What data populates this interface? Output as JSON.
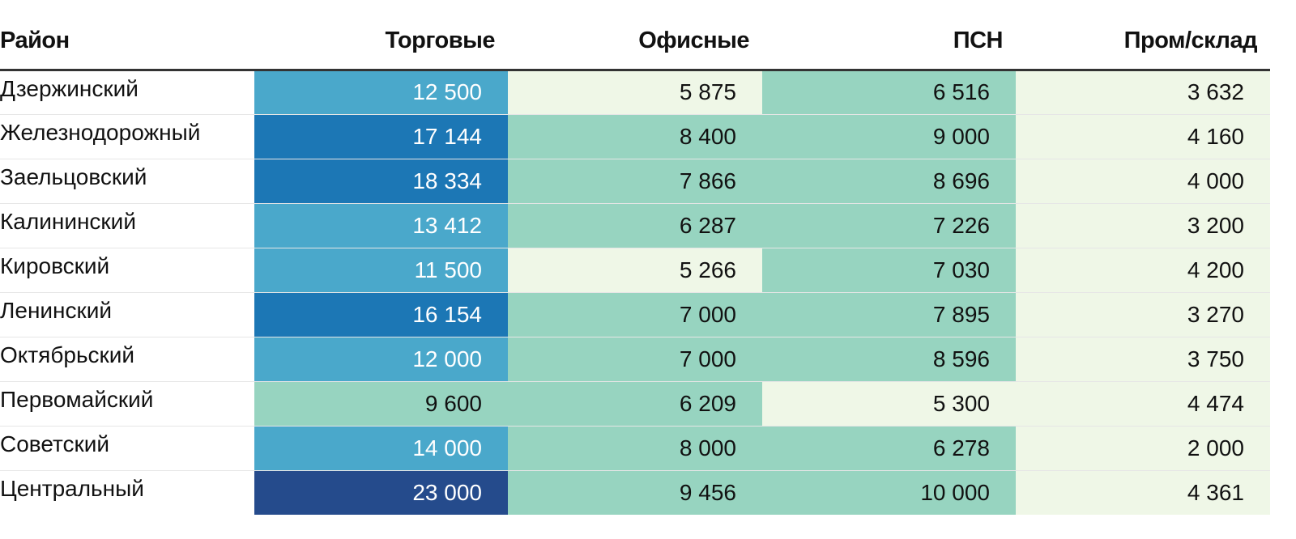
{
  "chart_data": {
    "type": "table",
    "columns": [
      "Район",
      "Торговые",
      "Офисные",
      "ПСН",
      "Пром/склад"
    ],
    "rows": [
      {
        "district": "Дзержинский",
        "values": [
          12500,
          5875,
          6516,
          3632
        ],
        "labels": [
          "12 500",
          "5 875",
          "6 516",
          "3 632"
        ]
      },
      {
        "district": "Железнодорожный",
        "values": [
          17144,
          8400,
          9000,
          4160
        ],
        "labels": [
          "17 144",
          "8 400",
          "9 000",
          "4 160"
        ]
      },
      {
        "district": "Заельцовский",
        "values": [
          18334,
          7866,
          8696,
          4000
        ],
        "labels": [
          "18 334",
          "7 866",
          "8 696",
          "4 000"
        ]
      },
      {
        "district": "Калининский",
        "values": [
          13412,
          6287,
          7226,
          3200
        ],
        "labels": [
          "13 412",
          "6 287",
          "7 226",
          "3 200"
        ]
      },
      {
        "district": "Кировский",
        "values": [
          11500,
          5266,
          7030,
          4200
        ],
        "labels": [
          "11 500",
          "5 266",
          "7 030",
          "4 200"
        ]
      },
      {
        "district": "Ленинский",
        "values": [
          16154,
          7000,
          7895,
          3270
        ],
        "labels": [
          "16 154",
          "7 000",
          "7 895",
          "3 270"
        ]
      },
      {
        "district": "Октябрьский",
        "values": [
          12000,
          7000,
          8596,
          3750
        ],
        "labels": [
          "12 000",
          "7 000",
          "8 596",
          "3 750"
        ]
      },
      {
        "district": "Первомайский",
        "values": [
          9600,
          6209,
          5300,
          4474
        ],
        "labels": [
          "9 600",
          "6 209",
          "5 300",
          "4 474"
        ]
      },
      {
        "district": "Советский",
        "values": [
          14000,
          8000,
          6278,
          2000
        ],
        "labels": [
          "14 000",
          "8 000",
          "6 278",
          "2 000"
        ]
      },
      {
        "district": "Центральный",
        "values": [
          23000,
          9456,
          10000,
          4361
        ],
        "labels": [
          "23 000",
          "9 456",
          "10 000",
          "4 361"
        ]
      }
    ],
    "color_scale": {
      "thresholds": [
        6000,
        11000,
        16000,
        21000
      ],
      "colors": [
        "#eff7e7",
        "#97d4c0",
        "#4aa8cb",
        "#1c77b5",
        "#254b8c"
      ],
      "light_text_from_index": 2
    }
  }
}
